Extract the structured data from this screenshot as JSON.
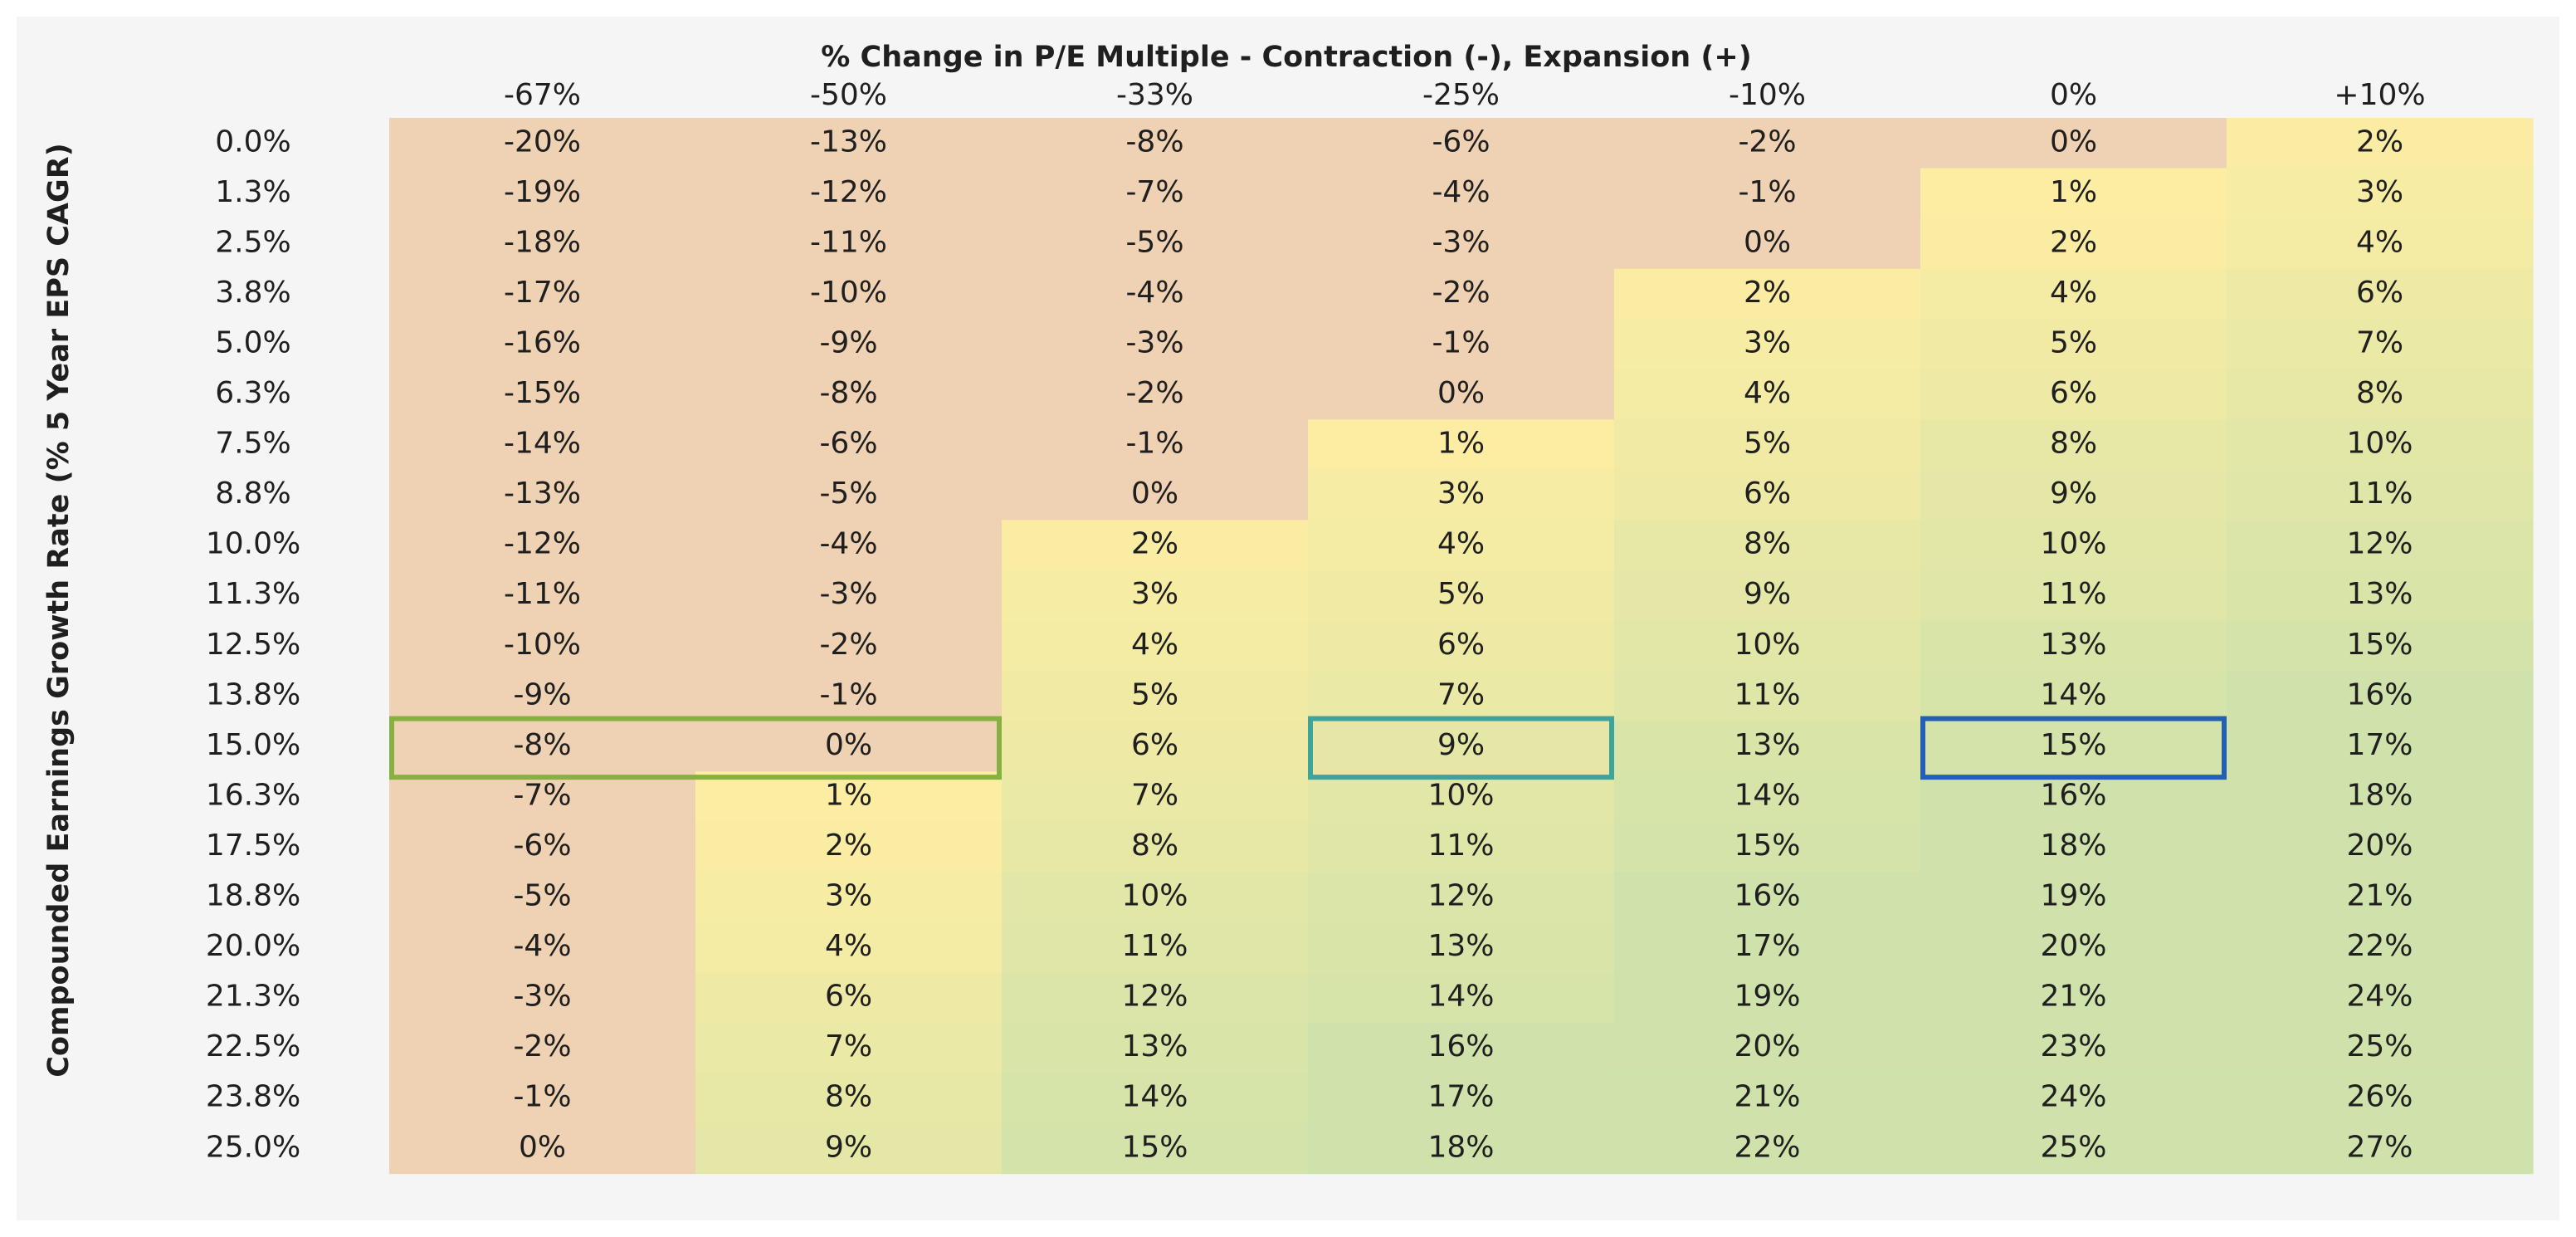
{
  "chart_data": {
    "type": "heatmap",
    "title": "% Change in P/E Multiple - Contraction (-), Expansion (+)",
    "ylabel": "Compounded Earnings Growth Rate (% 5 Year EPS CAGR)",
    "x": [
      "-67%",
      "-50%",
      "-33%",
      "-25%",
      "-10%",
      "0%",
      "+10%"
    ],
    "y": [
      "0.0%",
      "1.3%",
      "2.5%",
      "3.8%",
      "5.0%",
      "6.3%",
      "7.5%",
      "8.8%",
      "10.0%",
      "11.3%",
      "12.5%",
      "13.8%",
      "15.0%",
      "16.3%",
      "17.5%",
      "18.8%",
      "20.0%",
      "21.3%",
      "22.5%",
      "23.8%",
      "25.0%"
    ],
    "values": [
      [
        -20,
        -13,
        -8,
        -6,
        -2,
        0,
        2
      ],
      [
        -19,
        -12,
        -7,
        -4,
        -1,
        1,
        3
      ],
      [
        -18,
        -11,
        -5,
        -3,
        0,
        2,
        4
      ],
      [
        -17,
        -10,
        -4,
        -2,
        2,
        4,
        6
      ],
      [
        -16,
        -9,
        -3,
        -1,
        3,
        5,
        7
      ],
      [
        -15,
        -8,
        -2,
        0,
        4,
        6,
        8
      ],
      [
        -14,
        -6,
        -1,
        1,
        5,
        8,
        10
      ],
      [
        -13,
        -5,
        0,
        3,
        6,
        9,
        11
      ],
      [
        -12,
        -4,
        2,
        4,
        8,
        10,
        12
      ],
      [
        -11,
        -3,
        3,
        5,
        9,
        11,
        13
      ],
      [
        -10,
        -2,
        4,
        6,
        10,
        13,
        15
      ],
      [
        -9,
        -1,
        5,
        7,
        11,
        14,
        16
      ],
      [
        -8,
        0,
        6,
        9,
        13,
        15,
        17
      ],
      [
        -7,
        1,
        7,
        10,
        14,
        16,
        18
      ],
      [
        -6,
        2,
        8,
        11,
        15,
        18,
        20
      ],
      [
        -5,
        3,
        10,
        12,
        16,
        19,
        21
      ],
      [
        -4,
        4,
        11,
        13,
        17,
        20,
        22
      ],
      [
        -3,
        6,
        12,
        14,
        19,
        21,
        24
      ],
      [
        -2,
        7,
        13,
        16,
        20,
        23,
        25
      ],
      [
        -1,
        8,
        14,
        17,
        21,
        24,
        26
      ],
      [
        0,
        9,
        15,
        18,
        22,
        25,
        27
      ]
    ],
    "value_suffix": "%",
    "colors": {
      "negative": "#efd1b3",
      "low": "#fdeda2",
      "high": "#cfe2ab"
    },
    "highlights": [
      {
        "row": "15.0%",
        "from": "-67%",
        "to": "-50%",
        "color": "#86b040"
      },
      {
        "row": "15.0%",
        "from": "-25%",
        "to": "-25%",
        "color": "#3fa39a"
      },
      {
        "row": "15.0%",
        "from": "0%",
        "to": "0%",
        "color": "#2360b5"
      }
    ],
    "grid": false,
    "legend": "none"
  }
}
